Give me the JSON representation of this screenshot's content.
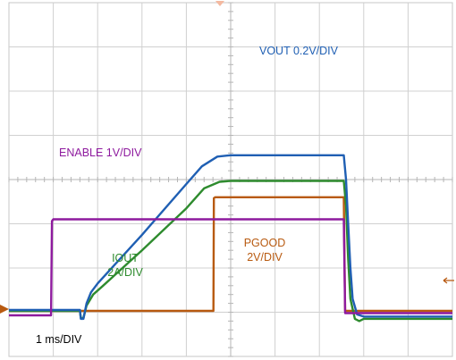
{
  "chart_data": {
    "type": "line",
    "title": "",
    "xlabel": "",
    "ylabel": "",
    "x_div": {
      "time_per_division_ms": 1,
      "divisions": 10,
      "range_ms": [
        0,
        10
      ]
    },
    "y_div": {
      "divisions": 8,
      "range": [
        0,
        8
      ]
    },
    "grid": true,
    "timebase_label": "1 ms/DIV",
    "series": [
      {
        "name": "VOUT 0.2V/DIV",
        "label": "VOUT 0.2V/DIV",
        "color": "#1f5fb3",
        "label_lines": [
          "VOUT 0.2V/DIV"
        ],
        "points": [
          [
            0,
            1.05
          ],
          [
            1.6,
            1.05
          ],
          [
            1.62,
            0.85
          ],
          [
            1.68,
            0.85
          ],
          [
            1.75,
            1.2
          ],
          [
            1.85,
            1.45
          ],
          [
            2.0,
            1.65
          ],
          [
            3.0,
            2.75
          ],
          [
            4.0,
            3.9
          ],
          [
            4.35,
            4.3
          ],
          [
            4.7,
            4.52
          ],
          [
            5.0,
            4.55
          ],
          [
            7.55,
            4.55
          ],
          [
            7.6,
            4.0
          ],
          [
            7.65,
            3.0
          ],
          [
            7.7,
            2.0
          ],
          [
            7.75,
            1.3
          ],
          [
            7.85,
            0.95
          ],
          [
            8.0,
            0.9
          ],
          [
            10,
            0.9
          ]
        ]
      },
      {
        "name": "IOUT 2A/DIV",
        "label": "IOUT",
        "color": "#2e8b2e",
        "label_lines": [
          "IOUT",
          "2A/DIV"
        ],
        "points": [
          [
            0,
            1.03
          ],
          [
            1.6,
            1.03
          ],
          [
            1.62,
            0.87
          ],
          [
            1.68,
            0.87
          ],
          [
            1.75,
            1.15
          ],
          [
            1.9,
            1.4
          ],
          [
            2.1,
            1.58
          ],
          [
            3.0,
            2.4
          ],
          [
            4.0,
            3.35
          ],
          [
            4.4,
            3.8
          ],
          [
            4.75,
            3.95
          ],
          [
            5.0,
            3.97
          ],
          [
            7.55,
            3.97
          ],
          [
            7.6,
            3.4
          ],
          [
            7.65,
            2.2
          ],
          [
            7.7,
            1.3
          ],
          [
            7.8,
            0.85
          ],
          [
            7.9,
            0.8
          ],
          [
            8.0,
            0.85
          ],
          [
            10,
            0.85
          ]
        ]
      },
      {
        "name": "ENABLE 1V/DIV",
        "label": "ENABLE 1V/DIV",
        "color": "#8e1a9e",
        "label_lines": [
          "ENABLE 1V/DIV"
        ],
        "points": [
          [
            0,
            0.93
          ],
          [
            0.95,
            0.93
          ],
          [
            0.97,
            3.06
          ],
          [
            1.0,
            3.1
          ],
          [
            7.55,
            3.1
          ],
          [
            7.58,
            0.98
          ],
          [
            10,
            0.98
          ]
        ]
      },
      {
        "name": "PGOOD 2V/DIV",
        "label": "PGOOD",
        "color": "#b85a10",
        "label_lines": [
          "PGOOD",
          "2V/DIV"
        ],
        "points": [
          [
            0,
            1.03
          ],
          [
            4.61,
            1.03
          ],
          [
            4.62,
            3.58
          ],
          [
            4.65,
            3.6
          ],
          [
            7.55,
            3.6
          ],
          [
            7.58,
            1.03
          ],
          [
            10,
            1.03
          ]
        ]
      }
    ]
  }
}
